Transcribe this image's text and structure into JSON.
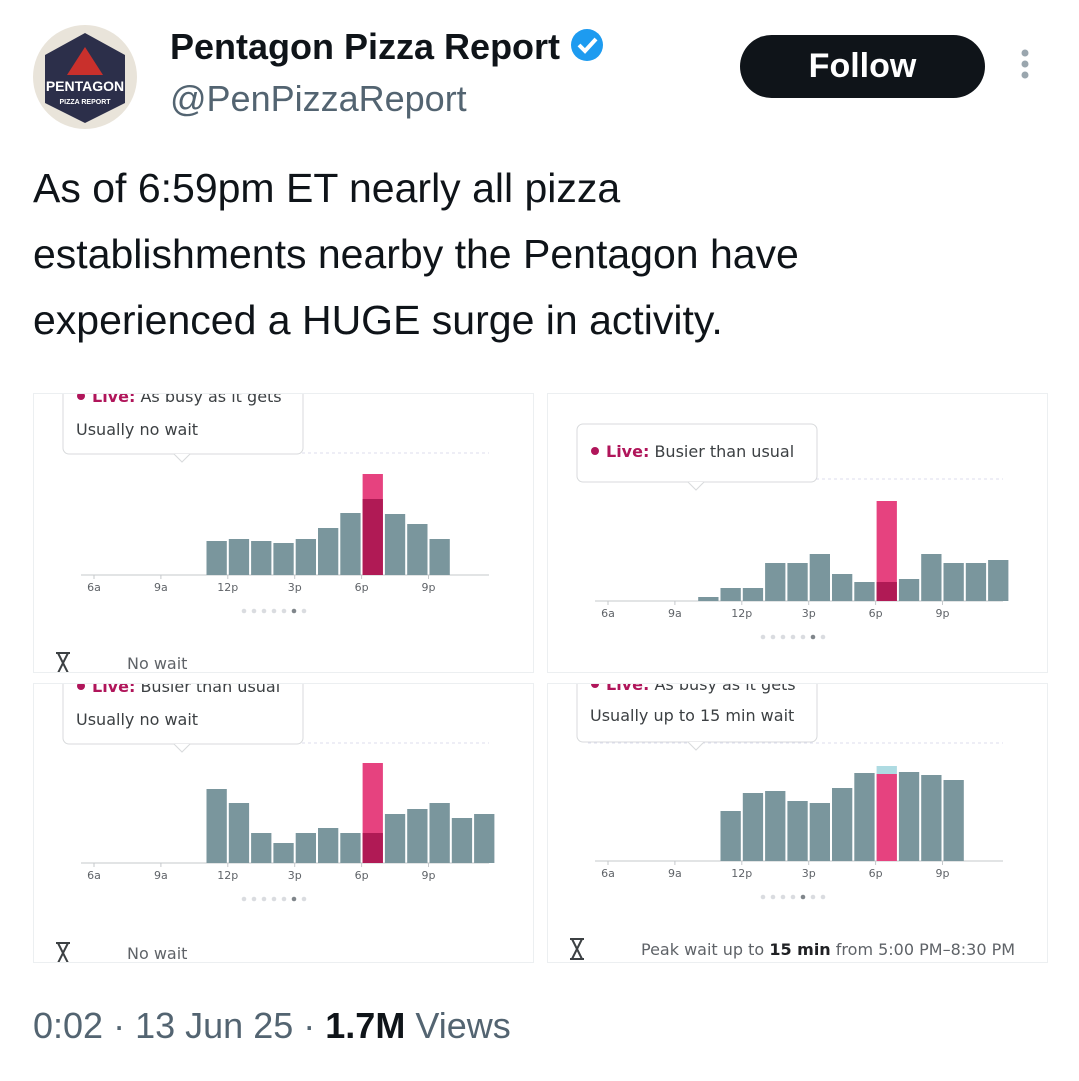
{
  "header": {
    "avatar_text": [
      "PENTAGON",
      "PIZZA REPORT"
    ],
    "name": "Pentagon Pizza Report",
    "handle": "@PenPizzaReport",
    "follow": "Follow"
  },
  "tweet": {
    "lines": [
      "As of 6:59pm ET nearly all pizza",
      "establishments nearby the Pentagon have",
      "experienced a HUGE surge in activity."
    ]
  },
  "charts": [
    {
      "type": "bar",
      "status_label": "Live:",
      "status_text": "As busy as it gets",
      "wait": "Usually no wait",
      "footer": [
        "No wait"
      ],
      "categories": [
        "6a",
        null,
        null,
        "9a",
        null,
        null,
        "12p",
        null,
        null,
        "3p",
        null,
        null,
        "6p",
        null,
        null,
        "9p",
        null,
        null
      ],
      "usual": [
        null,
        null,
        null,
        null,
        null,
        34,
        36,
        34,
        32,
        36,
        47,
        62,
        76,
        61,
        51,
        36,
        null,
        null
      ],
      "live": [
        null,
        null,
        null,
        null,
        null,
        null,
        null,
        null,
        null,
        null,
        null,
        null,
        101,
        null,
        null,
        null,
        null,
        null
      ]
    },
    {
      "type": "bar",
      "status_label": "Live:",
      "status_text": "Busier than usual",
      "categories": [
        "6a",
        null,
        null,
        "9a",
        null,
        null,
        "12p",
        null,
        null,
        "3p",
        null,
        null,
        "6p",
        null,
        null,
        "9p",
        null,
        null
      ],
      "usual": [
        null,
        null,
        null,
        null,
        4,
        13,
        13,
        38,
        38,
        47,
        27,
        19,
        19,
        22,
        47,
        38,
        38,
        41
      ],
      "live": [
        null,
        null,
        null,
        null,
        null,
        null,
        null,
        null,
        null,
        null,
        null,
        null,
        100,
        null,
        null,
        null,
        null,
        null
      ]
    },
    {
      "type": "bar",
      "status_label": "Live:",
      "status_text": "Busier than usual",
      "wait": "Usually no wait",
      "footer": [
        "No wait"
      ],
      "categories": [
        "6a",
        null,
        null,
        "9a",
        null,
        null,
        "12p",
        null,
        null,
        "3p",
        null,
        null,
        "6p",
        null,
        null,
        "9p",
        null,
        null
      ],
      "usual": [
        null,
        null,
        null,
        null,
        null,
        74,
        60,
        30,
        20,
        30,
        35,
        30,
        30,
        49,
        54,
        60,
        45,
        49
      ],
      "live": [
        null,
        null,
        null,
        null,
        null,
        null,
        null,
        null,
        null,
        null,
        null,
        null,
        100,
        null,
        null,
        null,
        null,
        null
      ]
    },
    {
      "type": "bar",
      "status_label": "Live:",
      "status_text": "As busy as it gets",
      "wait": "Usually up to 15 min wait",
      "footer": [
        "Peak wait up to ",
        "15 min",
        " from 5:00 PM–8:30 PM"
      ],
      "categories": [
        "6a",
        null,
        null,
        "9a",
        null,
        null,
        "12p",
        null,
        null,
        "3p",
        null,
        null,
        "6p",
        null,
        null,
        "9p",
        null,
        null
      ],
      "usual": [
        null,
        null,
        null,
        null,
        null,
        50,
        68,
        70,
        60,
        58,
        73,
        88,
        95,
        89,
        86,
        81,
        null,
        null
      ],
      "live": [
        null,
        null,
        null,
        null,
        null,
        null,
        null,
        null,
        null,
        null,
        null,
        null,
        87,
        null,
        null,
        null,
        null,
        null
      ]
    }
  ],
  "meta": {
    "time": "0:02",
    "separator": "·",
    "date": "13 Jun 25",
    "views_count": "1.7M",
    "views_label": "Views"
  }
}
